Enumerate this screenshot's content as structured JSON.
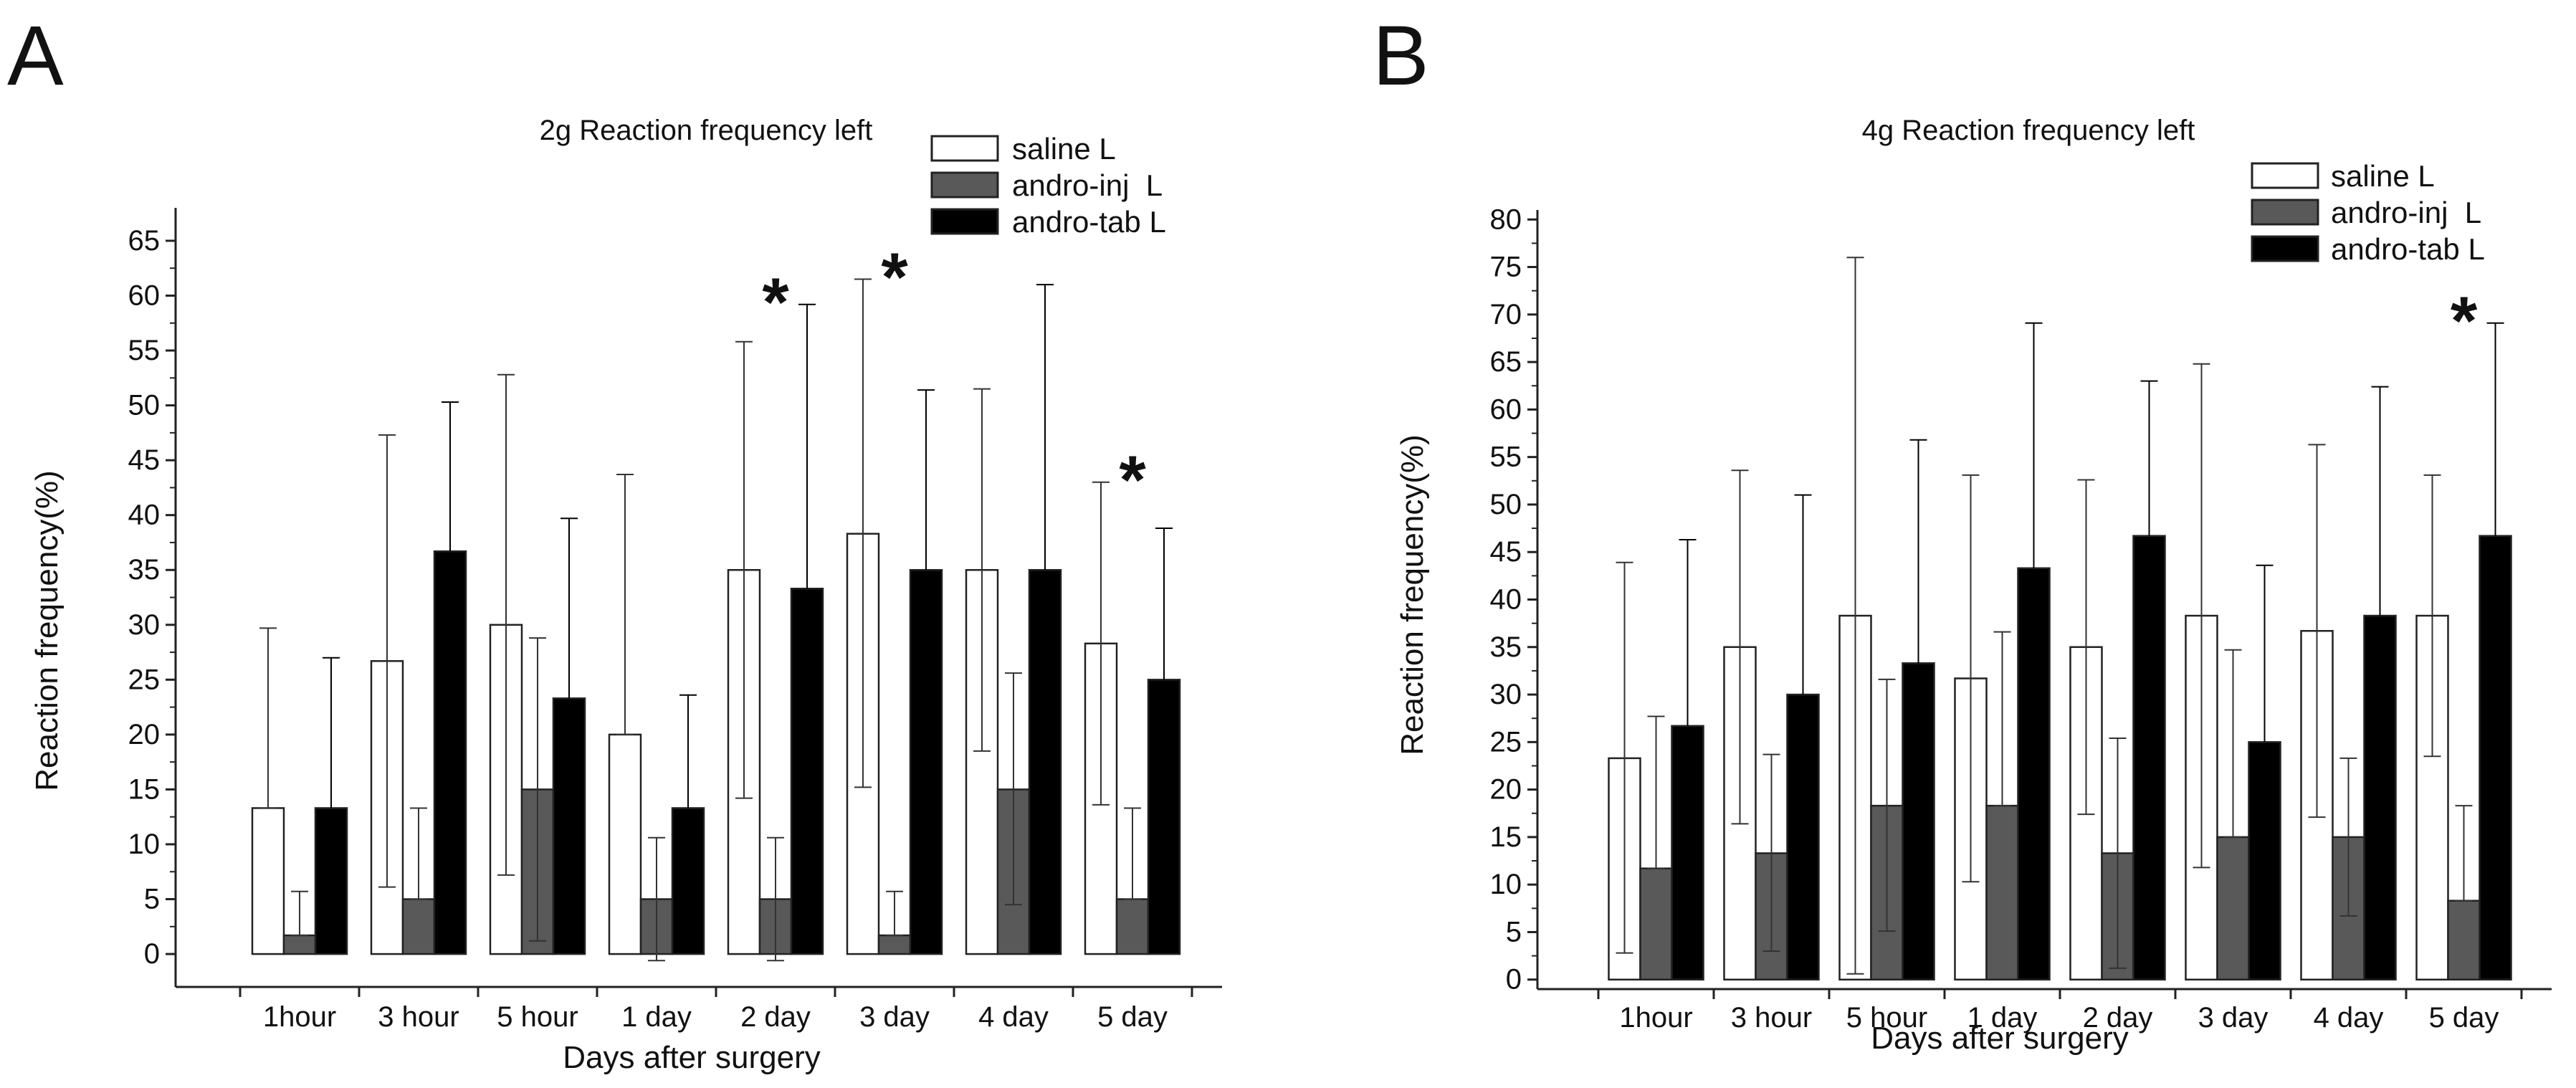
{
  "panels": [
    {
      "letter": "A",
      "legend": [
        "saline L",
        "andro-inj  L",
        "andro-tab L"
      ]
    },
    {
      "letter": "B",
      "legend": [
        "saline L",
        "andro-inj  L",
        "andro-tab L"
      ]
    }
  ],
  "colors": {
    "saline": "#ffffff",
    "andro_inj": "#595959",
    "andro_tab": "#000000",
    "axis": "#222222"
  },
  "chart_data": [
    {
      "type": "bar",
      "title": "2g Reaction frequency left",
      "xlabel": "Days after surgery",
      "ylabel": "Reaction frequency(%)",
      "categories": [
        "1hour",
        "3 hour",
        "5 hour",
        "1 day",
        "2 day",
        "3 day",
        "4 day",
        "5 day"
      ],
      "ylim": [
        -3,
        68
      ],
      "yticks": [
        0,
        5,
        10,
        15,
        20,
        25,
        30,
        35,
        40,
        45,
        50,
        55,
        60,
        65
      ],
      "legend_position": "top-right",
      "series": [
        {
          "name": "saline L",
          "values": [
            13.3,
            26.7,
            30.0,
            20.0,
            35.0,
            38.3,
            35.0,
            28.3
          ],
          "error_upper": [
            29.7,
            47.3,
            52.8,
            43.7,
            55.8,
            61.5,
            51.5,
            43.0
          ],
          "error_lower": [
            13.3,
            6.1,
            7.2,
            20.0,
            14.2,
            15.2,
            18.5,
            13.6
          ]
        },
        {
          "name": "andro-inj  L",
          "values": [
            1.7,
            5.0,
            15.0,
            5.0,
            5.0,
            1.7,
            15.0,
            5.0
          ],
          "error_upper": [
            5.7,
            13.3,
            28.8,
            10.6,
            10.6,
            5.7,
            25.6,
            13.3
          ],
          "error_lower": [
            1.7,
            5.0,
            1.2,
            -0.6,
            -0.6,
            1.7,
            4.5,
            5.0
          ]
        },
        {
          "name": "andro-tab L",
          "values": [
            13.3,
            36.7,
            23.3,
            13.3,
            33.3,
            35.0,
            35.0,
            25.0
          ],
          "error_upper": [
            27.0,
            50.3,
            39.7,
            23.6,
            59.2,
            51.4,
            61.0,
            38.8
          ],
          "error_lower": [
            13.3,
            36.7,
            23.3,
            13.3,
            33.3,
            35.0,
            35.0,
            25.0
          ]
        }
      ],
      "significance_markers": [
        {
          "category": "2 day",
          "text": "*"
        },
        {
          "category": "3 day",
          "text": "*"
        },
        {
          "category": "5 day",
          "text": "*"
        }
      ]
    },
    {
      "type": "bar",
      "title": "4g Reaction frequency left",
      "xlabel": "Days after surgery",
      "ylabel": "Reaction frequency(%)",
      "categories": [
        "1hour",
        "3 hour",
        "5 hour",
        "1 day",
        "2 day",
        "3 day",
        "4 day",
        "5 day"
      ],
      "ylim": [
        -1,
        81
      ],
      "yticks": [
        0,
        5,
        10,
        15,
        20,
        25,
        30,
        35,
        40,
        45,
        50,
        55,
        60,
        65,
        70,
        75,
        80
      ],
      "legend_position": "top-right",
      "series": [
        {
          "name": "saline L",
          "values": [
            23.3,
            35.0,
            38.3,
            31.7,
            35.0,
            38.3,
            36.7,
            38.3
          ],
          "error_upper": [
            43.9,
            53.6,
            76.0,
            53.1,
            52.6,
            64.8,
            56.3,
            53.1
          ],
          "error_lower": [
            2.8,
            16.4,
            0.6,
            10.3,
            17.4,
            11.8,
            17.1,
            23.5
          ]
        },
        {
          "name": "andro-inj  L",
          "values": [
            11.7,
            13.3,
            18.3,
            18.3,
            13.3,
            15.0,
            15.0,
            8.3
          ],
          "error_upper": [
            27.7,
            23.7,
            31.6,
            36.6,
            25.4,
            34.7,
            23.3,
            18.3
          ],
          "error_lower": [
            11.7,
            3.0,
            5.1,
            18.3,
            1.2,
            15.0,
            6.7,
            8.3
          ]
        },
        {
          "name": "andro-tab L",
          "values": [
            26.7,
            30.0,
            33.3,
            43.3,
            46.7,
            25.0,
            38.3,
            46.7
          ],
          "error_upper": [
            46.3,
            51.0,
            56.8,
            69.1,
            63.0,
            43.6,
            62.4,
            69.1
          ],
          "error_lower": [
            26.7,
            30.0,
            33.3,
            43.3,
            46.7,
            25.0,
            38.3,
            46.7
          ]
        }
      ],
      "significance_markers": [
        {
          "category": "5 day",
          "text": "*"
        }
      ]
    }
  ]
}
